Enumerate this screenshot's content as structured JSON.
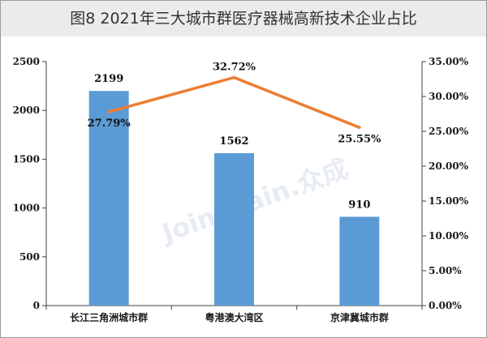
{
  "header": {
    "title": "图8  2021年三大城市群医疗器械高新技术企业占比"
  },
  "watermark": "Joinchain.众成",
  "colors": {
    "bar": "#5b9bd5",
    "line": "#ed7d31",
    "axis": "#404040"
  },
  "chart_data": {
    "type": "bar",
    "title": "图8  2021年三大城市群医疗器械高新技术企业占比",
    "categories": [
      "长江三角洲城市群",
      "粤港澳大湾区",
      "京津冀城市群"
    ],
    "series": [
      {
        "type": "bar",
        "axis": "left",
        "values": [
          2199,
          1562,
          910
        ],
        "labels": [
          "2199",
          "1562",
          "910"
        ]
      },
      {
        "type": "line",
        "axis": "right",
        "values": [
          27.79,
          32.72,
          25.55
        ],
        "labels": [
          "27.79%",
          "32.72%",
          "25.55%"
        ]
      }
    ],
    "y_left": {
      "min": 0,
      "max": 2500,
      "ticks": [
        0,
        500,
        1000,
        1500,
        2000,
        2500
      ],
      "tick_labels": [
        "0",
        "500",
        "1000",
        "1500",
        "2000",
        "2500"
      ]
    },
    "y_right": {
      "min": 0,
      "max": 35,
      "ticks": [
        0,
        5,
        10,
        15,
        20,
        25,
        30,
        35
      ],
      "tick_labels": [
        "0.00%",
        "5.00%",
        "10.00%",
        "15.00%",
        "20.00%",
        "25.00%",
        "30.00%",
        "35.00%"
      ]
    },
    "grid": false,
    "legend": "none"
  }
}
